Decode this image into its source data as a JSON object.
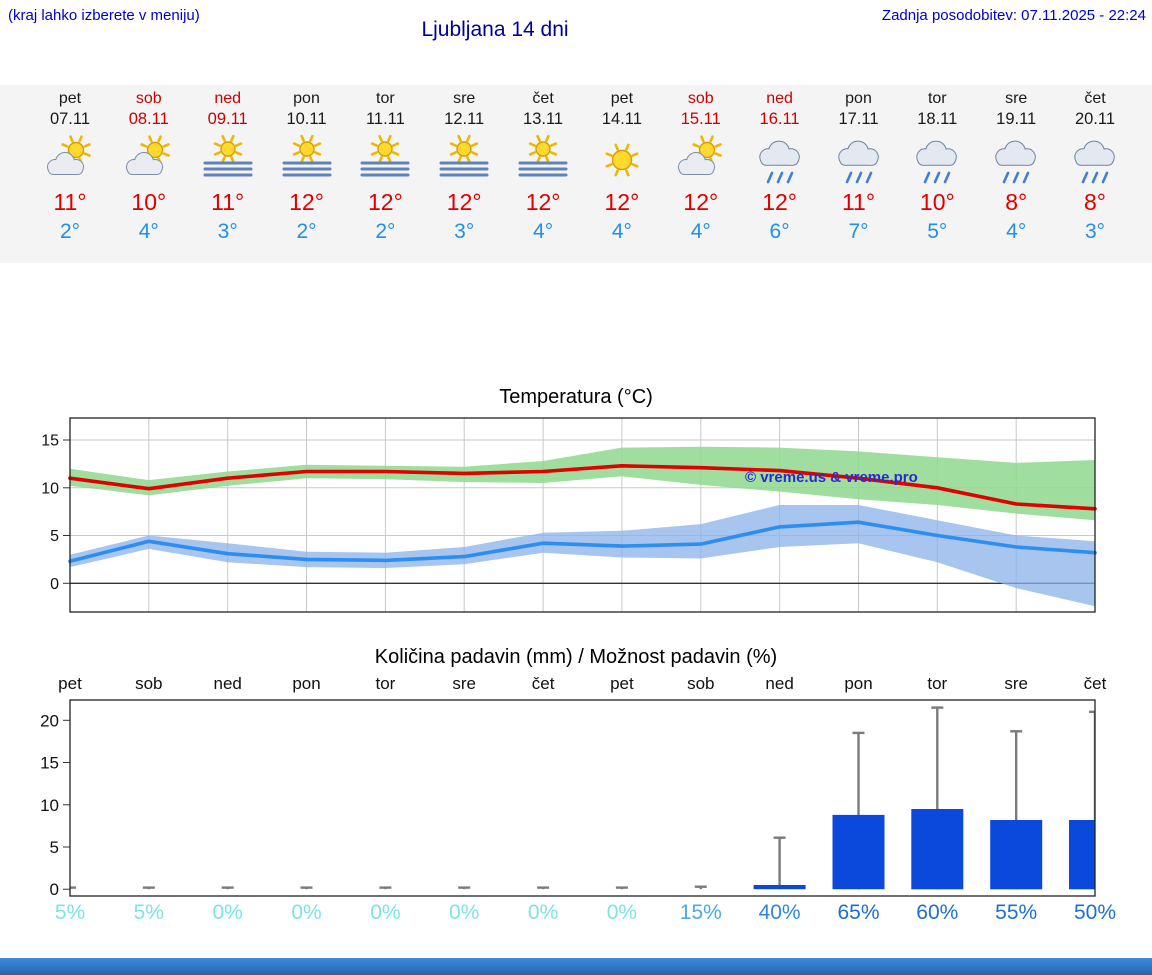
{
  "header": {
    "hint": "(kraj lahko izberete v meniju)",
    "title": "Ljubljana 14 dni",
    "updated": "Zadnja posodobitev: 07.11.2025 - 22:24"
  },
  "colors": {
    "header_blue": "#0000cc",
    "title_blue": "#000099",
    "weekend_red": "#cc0000",
    "weekday_black": "#1a1a1a",
    "high_temp_red": "#dd0000",
    "low_temp_blue": "#2090e8",
    "strip_bg": "#f4f4f4",
    "bar_blue": "#0a49dc",
    "footer_blue": "#2e7ccc"
  },
  "forecast": {
    "days": [
      {
        "name": "pet",
        "date": "07.11",
        "icon": "sun-cloud",
        "high": "11°",
        "low": "2°",
        "weekend": false
      },
      {
        "name": "sob",
        "date": "08.11",
        "icon": "sun-cloud",
        "high": "10°",
        "low": "4°",
        "weekend": true
      },
      {
        "name": "ned",
        "date": "09.11",
        "icon": "sun-fog",
        "high": "11°",
        "low": "3°",
        "weekend": true
      },
      {
        "name": "pon",
        "date": "10.11",
        "icon": "sun-fog",
        "high": "12°",
        "low": "2°",
        "weekend": false
      },
      {
        "name": "tor",
        "date": "11.11",
        "icon": "sun-fog",
        "high": "12°",
        "low": "2°",
        "weekend": false
      },
      {
        "name": "sre",
        "date": "12.11",
        "icon": "sun-fog",
        "high": "12°",
        "low": "3°",
        "weekend": false
      },
      {
        "name": "čet",
        "date": "13.11",
        "icon": "sun-fog",
        "high": "12°",
        "low": "4°",
        "weekend": false
      },
      {
        "name": "pet",
        "date": "14.11",
        "icon": "sun",
        "high": "12°",
        "low": "4°",
        "weekend": false
      },
      {
        "name": "sob",
        "date": "15.11",
        "icon": "sun-cloud",
        "high": "12°",
        "low": "4°",
        "weekend": true
      },
      {
        "name": "ned",
        "date": "16.11",
        "icon": "rain",
        "high": "12°",
        "low": "6°",
        "weekend": true
      },
      {
        "name": "pon",
        "date": "17.11",
        "icon": "rain",
        "high": "11°",
        "low": "7°",
        "weekend": false
      },
      {
        "name": "tor",
        "date": "18.11",
        "icon": "rain",
        "high": "10°",
        "low": "5°",
        "weekend": false
      },
      {
        "name": "sre",
        "date": "19.11",
        "icon": "rain",
        "high": "8°",
        "low": "4°",
        "weekend": false
      },
      {
        "name": "čet",
        "date": "20.11",
        "icon": "rain",
        "high": "8°",
        "low": "3°",
        "weekend": false
      }
    ]
  },
  "chart_data": [
    {
      "type": "line",
      "title": "Temperatura (°C)",
      "categories": [
        "07.11",
        "08.11",
        "09.11",
        "10.11",
        "11.11",
        "12.11",
        "13.11",
        "14.11",
        "15.11",
        "16.11",
        "17.11",
        "18.11",
        "19.11",
        "20.11"
      ],
      "ylim": [
        -3,
        17.3
      ],
      "yticks": [
        0,
        5,
        10,
        15
      ],
      "series": [
        {
          "name": "max temperature",
          "color": "#e00000",
          "values": [
            11,
            9.9,
            11,
            11.7,
            11.7,
            11.5,
            11.7,
            12.3,
            12.1,
            11.8,
            11,
            10,
            8.3,
            7.8
          ]
        },
        {
          "name": "min temperature",
          "color": "#2e8ef0",
          "values": [
            2.3,
            4.4,
            3.1,
            2.5,
            2.4,
            2.8,
            4.2,
            3.9,
            4.1,
            5.9,
            6.4,
            5,
            3.8,
            3.2
          ]
        }
      ],
      "bands": [
        {
          "name": "max range",
          "color": "#8ed88e",
          "opacity": 0.85,
          "upper": [
            12,
            10.8,
            11.7,
            12.4,
            12.3,
            12.2,
            12.8,
            14.2,
            14.3,
            14.2,
            13.8,
            13.2,
            12.6,
            12.9
          ],
          "lower": [
            10.2,
            9.2,
            10.2,
            11,
            10.9,
            10.6,
            10.5,
            11.2,
            10.3,
            9.6,
            8.8,
            8.2,
            7.3,
            6.6
          ]
        },
        {
          "name": "min range",
          "color": "#8ab2ea",
          "opacity": 0.75,
          "upper": [
            3,
            5,
            4.2,
            3.3,
            3.2,
            3.8,
            5.3,
            5.5,
            6.2,
            8.2,
            8.2,
            6.6,
            5,
            4.4
          ],
          "lower": [
            1.7,
            3.6,
            2.2,
            1.7,
            1.6,
            2,
            3.2,
            2.7,
            2.6,
            3.8,
            4.2,
            2.2,
            -0.5,
            -2.4
          ]
        }
      ],
      "watermark": "© vreme.us & vreme.pro"
    },
    {
      "type": "bar",
      "title": "Količina padavin (mm) / Možnost padavin (%)",
      "categories": [
        "pet",
        "sob",
        "ned",
        "pon",
        "tor",
        "sre",
        "čet",
        "pet",
        "sob",
        "ned",
        "pon",
        "tor",
        "sre",
        "čet"
      ],
      "ylim": [
        -0.8,
        22.4
      ],
      "yticks": [
        0,
        5,
        10,
        15,
        20
      ],
      "bar_color": "#0a49dc",
      "values_mm": [
        0,
        0,
        0,
        0,
        0,
        0,
        0,
        0,
        0,
        0.5,
        8.8,
        9.5,
        8.2,
        8.2
      ],
      "whisker_max_mm": [
        0.2,
        0.2,
        0.2,
        0.2,
        0.2,
        0.2,
        0.2,
        0.2,
        0.3,
        6.1,
        18.5,
        21.5,
        18.7,
        21
      ],
      "percentages": [
        {
          "text": "5%",
          "color": "#7de4e4"
        },
        {
          "text": "5%",
          "color": "#7de4e4"
        },
        {
          "text": "0%",
          "color": "#7de4e4"
        },
        {
          "text": "0%",
          "color": "#7de4e4"
        },
        {
          "text": "0%",
          "color": "#7de4e4"
        },
        {
          "text": "0%",
          "color": "#7de4e4"
        },
        {
          "text": "0%",
          "color": "#7de4e4"
        },
        {
          "text": "0%",
          "color": "#7de4e4"
        },
        {
          "text": "15%",
          "color": "#4aa9e6"
        },
        {
          "text": "40%",
          "color": "#2f86dd"
        },
        {
          "text": "65%",
          "color": "#1c6fd2"
        },
        {
          "text": "60%",
          "color": "#1c6fd2"
        },
        {
          "text": "55%",
          "color": "#1c6fd2"
        },
        {
          "text": "50%",
          "color": "#1c6fd2"
        }
      ]
    }
  ]
}
